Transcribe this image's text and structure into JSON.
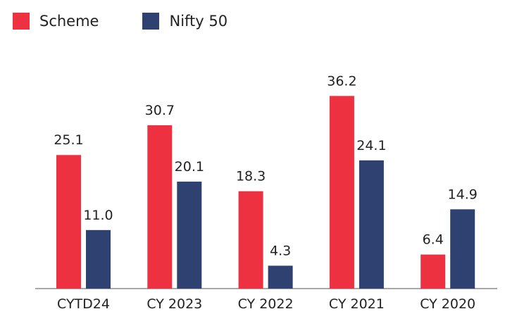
{
  "legend": {
    "items": [
      {
        "label": "Scheme",
        "color": "#ee3140"
      },
      {
        "label": "Nifty 50",
        "color": "#2f4170"
      }
    ]
  },
  "chart_data": {
    "type": "bar",
    "categories": [
      "CYTD24",
      "CY 2023",
      "CY 2022",
      "CY 2021",
      "CY 2020"
    ],
    "series": [
      {
        "name": "Scheme",
        "color": "#ee3140",
        "values": [
          25.1,
          30.7,
          18.3,
          36.2,
          6.4
        ],
        "labels": [
          "25.1",
          "30.7",
          "18.3",
          "36.2",
          "6.4"
        ]
      },
      {
        "name": "Nifty 50",
        "color": "#2f4170",
        "values": [
          11.0,
          20.1,
          4.3,
          24.1,
          14.9
        ],
        "labels": [
          "11.0",
          "20.1",
          "4.3",
          "24.1",
          "14.9"
        ]
      }
    ],
    "title": "",
    "xlabel": "",
    "ylabel": "",
    "ylim": [
      0,
      40
    ],
    "grid": false,
    "legend_position": "top-left"
  }
}
